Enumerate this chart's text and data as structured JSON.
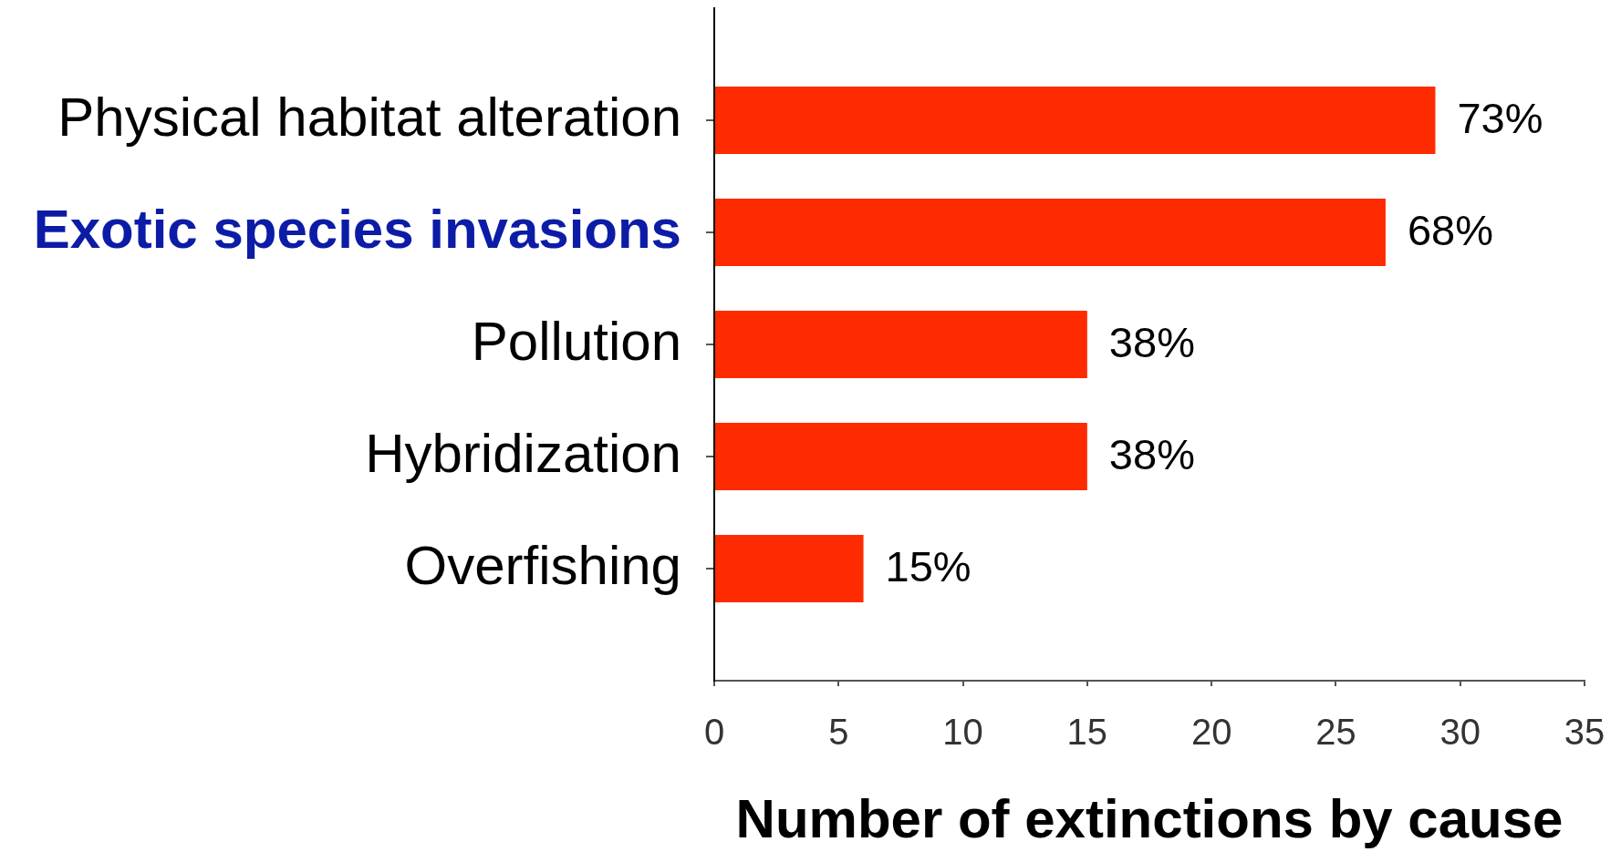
{
  "chart_data": {
    "type": "bar",
    "orientation": "horizontal",
    "xlabel": "Number of extinctions by cause",
    "categories": [
      "Physical habitat alteration",
      "Exotic species invasions",
      "Pollution",
      "Hybridization",
      "Overfishing"
    ],
    "values": [
      29,
      27,
      15,
      15,
      6
    ],
    "color": "#ff2b00",
    "xlim": [
      0,
      35
    ],
    "xticks": [
      0,
      5,
      10,
      15,
      20,
      25,
      30,
      35
    ],
    "annotations": [
      {
        "text": "73%",
        "x": 29,
        "y": "Physical habitat alteration"
      },
      {
        "text": "68%",
        "x": 27,
        "y": "Exotic species invasions"
      },
      {
        "text": "38%",
        "x": 15,
        "y": "Pollution"
      },
      {
        "text": "38%",
        "x": 15,
        "y": "Hybridization"
      },
      {
        "text": "15%",
        "x": 6,
        "y": "Overfishing"
      }
    ]
  }
}
